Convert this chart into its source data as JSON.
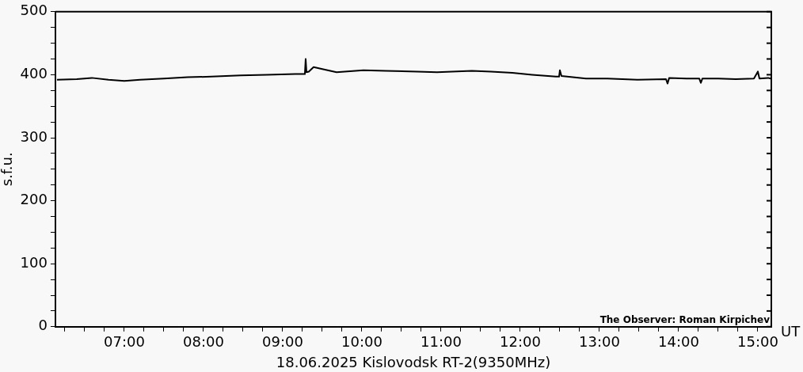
{
  "chart_data": {
    "type": "line",
    "xlabel": "18.06.2025 Kislovodsk RT-2(9350MHz)",
    "ylabel": "s.f.u.",
    "annotations": [
      "UT",
      "The Observer: Roman Kirpichev"
    ],
    "xlim": [
      6.13,
      15.17
    ],
    "xticks": [
      {
        "value": 6.25,
        "label": null
      },
      {
        "value": 6.5,
        "label": null
      },
      {
        "value": 6.75,
        "label": null
      },
      {
        "value": 7,
        "label": "07:00"
      },
      {
        "value": 7.25,
        "label": null
      },
      {
        "value": 7.5,
        "label": null
      },
      {
        "value": 7.75,
        "label": null
      },
      {
        "value": 8,
        "label": "08:00"
      },
      {
        "value": 8.25,
        "label": null
      },
      {
        "value": 8.5,
        "label": null
      },
      {
        "value": 8.75,
        "label": null
      },
      {
        "value": 9,
        "label": "09:00"
      },
      {
        "value": 9.25,
        "label": null
      },
      {
        "value": 9.5,
        "label": null
      },
      {
        "value": 9.75,
        "label": null
      },
      {
        "value": 10,
        "label": "10:00"
      },
      {
        "value": 10.25,
        "label": null
      },
      {
        "value": 10.5,
        "label": null
      },
      {
        "value": 10.75,
        "label": null
      },
      {
        "value": 11,
        "label": "11:00"
      },
      {
        "value": 11.25,
        "label": null
      },
      {
        "value": 11.5,
        "label": null
      },
      {
        "value": 11.75,
        "label": null
      },
      {
        "value": 12,
        "label": "12:00"
      },
      {
        "value": 12.25,
        "label": null
      },
      {
        "value": 12.5,
        "label": null
      },
      {
        "value": 12.75,
        "label": null
      },
      {
        "value": 13,
        "label": "13:00"
      },
      {
        "value": 13.25,
        "label": null
      },
      {
        "value": 13.5,
        "label": null
      },
      {
        "value": 13.75,
        "label": null
      },
      {
        "value": 14,
        "label": "14:00"
      },
      {
        "value": 14.25,
        "label": null
      },
      {
        "value": 14.5,
        "label": null
      },
      {
        "value": 14.75,
        "label": null
      },
      {
        "value": 15,
        "label": "15:00"
      }
    ],
    "ylim": [
      0,
      500
    ],
    "yticks": [
      0,
      {
        "value": 25,
        "label": null
      },
      {
        "value": 50,
        "label": null
      },
      {
        "value": 75,
        "label": null
      },
      100,
      {
        "value": 125,
        "label": null
      },
      {
        "value": 150,
        "label": null
      },
      {
        "value": 175,
        "label": null
      },
      200,
      {
        "value": 225,
        "label": null
      },
      {
        "value": 250,
        "label": null
      },
      {
        "value": 275,
        "label": null
      },
      300,
      {
        "value": 325,
        "label": null
      },
      {
        "value": 350,
        "label": null
      },
      {
        "value": 375,
        "label": null
      },
      400,
      {
        "value": 425,
        "label": null
      },
      {
        "value": 450,
        "label": null
      },
      {
        "value": 475,
        "label": null
      },
      500
    ],
    "grid": false,
    "legend": false,
    "marker": "none",
    "line_style": "solid",
    "series": [
      {
        "color": "#000000",
        "x": [
          6.15,
          6.4,
          6.59,
          6.8,
          7.0,
          7.2,
          7.5,
          7.8,
          8.1,
          8.47,
          8.8,
          9.16,
          9.28,
          9.29,
          9.3,
          9.33,
          9.39,
          9.5,
          9.68,
          10.02,
          10.3,
          10.7,
          10.95,
          11.39,
          11.63,
          11.9,
          12.15,
          12.45,
          12.49,
          12.5,
          12.52,
          12.83,
          13.1,
          13.48,
          13.84,
          13.86,
          13.88,
          14.1,
          14.26,
          14.28,
          14.3,
          14.5,
          14.72,
          14.95,
          15.0,
          15.02,
          15.13,
          15.16
        ],
        "values": [
          392,
          393,
          395,
          392,
          390,
          392,
          394,
          396,
          397,
          399,
          400,
          401,
          401,
          425,
          404,
          405,
          412,
          409,
          404,
          407,
          406,
          405,
          404,
          406,
          405,
          403,
          400,
          397,
          397,
          407,
          398,
          394,
          394,
          392,
          393,
          386,
          395,
          394,
          394,
          387,
          394,
          394,
          393,
          394,
          405,
          394,
          395,
          394
        ]
      }
    ]
  }
}
